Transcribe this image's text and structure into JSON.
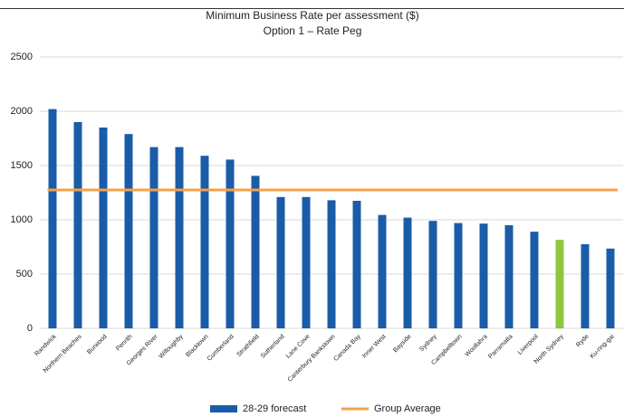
{
  "chart_data": {
    "type": "bar",
    "title": "Minimum Business Rate per assessment ($)",
    "subtitle": "Option 1 – Rate Peg",
    "categories": [
      "Randwick",
      "Northern Beaches",
      "Burwood",
      "Penrith",
      "Georges River",
      "Willoughby",
      "Blacktown",
      "Cumberland",
      "Strathfield",
      "Sutherland",
      "Lane Cove",
      "Canterbury Bankstown",
      "Canada Bay",
      "Inner West",
      "Bayside",
      "Sydney",
      "Campbelltown",
      "Woollahra",
      "Parramatta",
      "Liverpool",
      "North Sydney",
      "Ryde",
      "Ku-ring-gai"
    ],
    "series": [
      {
        "name": "28-29 forecast",
        "color": "#1a5ca8",
        "values": [
          2020,
          1900,
          1850,
          1790,
          1670,
          1670,
          1590,
          1555,
          1405,
          1210,
          1210,
          1180,
          1175,
          1045,
          1020,
          990,
          970,
          965,
          950,
          890,
          815,
          775,
          735
        ],
        "colors": [
          "#1a5ca8",
          "#1a5ca8",
          "#1a5ca8",
          "#1a5ca8",
          "#1a5ca8",
          "#1a5ca8",
          "#1a5ca8",
          "#1a5ca8",
          "#1a5ca8",
          "#1a5ca8",
          "#1a5ca8",
          "#1a5ca8",
          "#1a5ca8",
          "#1a5ca8",
          "#1a5ca8",
          "#1a5ca8",
          "#1a5ca8",
          "#1a5ca8",
          "#1a5ca8",
          "#1a5ca8",
          "#8dc63f",
          "#1a5ca8",
          "#1a5ca8"
        ]
      }
    ],
    "reference_line": {
      "name": "Group Average",
      "color": "#f5a04a",
      "value": 1275
    },
    "ylim": [
      0,
      2500
    ],
    "yticks": [
      0,
      500,
      1000,
      1500,
      2000,
      2500
    ],
    "grid": true
  }
}
